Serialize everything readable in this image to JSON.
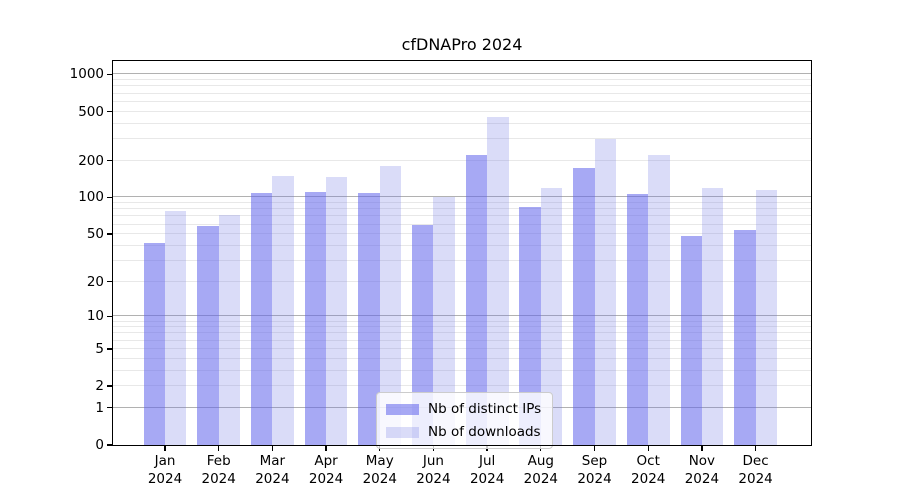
{
  "title": "cfDNAPro 2024",
  "colors": {
    "ips_bar": "rgba(95,99,235,0.55)",
    "downloads_bar": "rgba(107,115,227,0.25)",
    "major_grid": "#b1b1b1",
    "minor_grid": "#e8e8e8",
    "axis": "#000000",
    "legend_border": "#cccccc",
    "legend_bg": "rgba(255,255,255,0.8)"
  },
  "chart_data": {
    "type": "bar",
    "title": "cfDNAPro 2024",
    "categories": [
      "Jan 2024",
      "Feb 2024",
      "Mar 2024",
      "Apr 2024",
      "May 2024",
      "Jun 2024",
      "Jul 2024",
      "Aug 2024",
      "Sep 2024",
      "Oct 2024",
      "Nov 2024",
      "Dec 2024"
    ],
    "series": [
      {
        "name": "Nb of distinct IPs",
        "values": [
          42,
          58,
          108,
          110,
          108,
          60,
          220,
          83,
          173,
          106,
          48,
          54
        ]
      },
      {
        "name": "Nb of downloads",
        "values": [
          78,
          72,
          150,
          147,
          180,
          100,
          450,
          120,
          300,
          220,
          120,
          115
        ]
      }
    ],
    "xlabel": "",
    "ylabel": "",
    "yscale": "log1p",
    "ylim": [
      0,
      1285
    ],
    "yticks": [
      0,
      1,
      2,
      5,
      10,
      20,
      50,
      100,
      200,
      500,
      1000
    ],
    "major_gridlines": [
      1,
      10,
      100,
      1000
    ],
    "minor_gridlines": [
      2,
      3,
      4,
      5,
      6,
      7,
      8,
      9,
      20,
      30,
      40,
      50,
      60,
      70,
      80,
      90,
      200,
      300,
      400,
      500,
      600,
      700,
      800,
      900
    ],
    "grid": true,
    "legend_position": "lower center"
  }
}
